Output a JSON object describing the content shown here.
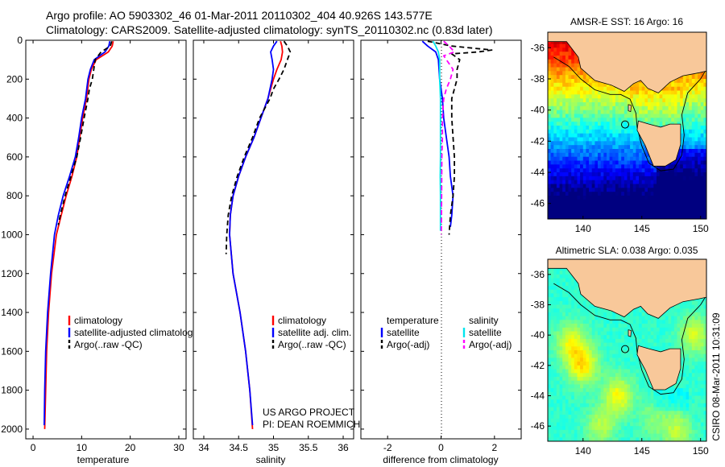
{
  "header": {
    "line1": "Argo profile: AO 5903302_46 01-Mar-2011 20110302_404 40.926S 143.577E",
    "line2": "Climatology: CARS2009. Satellite-adjusted climatology: synTS_20110302.nc (0.83d later)"
  },
  "colors": {
    "climatology": "#ff0000",
    "satellite": "#0000ff",
    "argo": "#000000",
    "sal_satellite": "#00e5ee",
    "sal_argo": "#ff00ff",
    "land": "#f8c89a",
    "coast": "#000000"
  },
  "chart_data": [
    {
      "type": "line",
      "id": "temperature",
      "xlabel": "temperature",
      "ylabel": "",
      "xlim": [
        -1.5,
        31.5
      ],
      "ylim": [
        2050,
        0
      ],
      "xticks": [
        0,
        10,
        20,
        30
      ],
      "xtick_labels": [
        "0",
        "10",
        "20",
        "30"
      ],
      "yticks": [
        0,
        200,
        400,
        600,
        800,
        1000,
        1200,
        1400,
        1600,
        1800,
        2000
      ],
      "ytick_labels": [
        "0",
        "200",
        "400",
        "600",
        "800",
        "1000",
        "1200",
        "1400",
        "1600",
        "1800",
        "2000"
      ],
      "legend": [
        "climatology",
        "satellite-adjusted climatology",
        "Argo(..raw -QC)"
      ],
      "legend_position": "lower-right",
      "series": [
        {
          "name": "climatology",
          "style": "solid",
          "depth": [
            5,
            30,
            60,
            100,
            150,
            200,
            300,
            400,
            500,
            600,
            700,
            800,
            900,
            1000,
            1200,
            1400,
            1600,
            1800,
            2000
          ],
          "values": [
            16.5,
            16.3,
            15.5,
            13.0,
            12.0,
            11.5,
            11.0,
            10.2,
            9.6,
            9.0,
            8.0,
            6.8,
            5.8,
            4.8,
            3.8,
            3.2,
            2.8,
            2.6,
            2.4
          ]
        },
        {
          "name": "satellite-adjusted climatology",
          "style": "solid",
          "depth": [
            5,
            30,
            60,
            100,
            150,
            200,
            300,
            400,
            500,
            600,
            700,
            800,
            900,
            1000,
            1200,
            1400,
            1600,
            1800,
            1980
          ],
          "values": [
            15.8,
            15.6,
            14.8,
            12.6,
            11.8,
            11.3,
            10.8,
            10.0,
            9.4,
            8.7,
            7.5,
            6.2,
            5.2,
            4.4,
            3.6,
            3.0,
            2.6,
            2.4,
            2.3
          ]
        },
        {
          "name": "Argo(..raw -QC)",
          "style": "dashed",
          "depth": [
            5,
            30,
            60,
            100,
            150,
            200,
            250,
            300,
            400,
            500,
            600,
            700,
            800,
            900,
            950
          ],
          "values": [
            16.2,
            15.9,
            14.0,
            12.8,
            12.5,
            12.2,
            11.6,
            11.3,
            10.5,
            9.8,
            9.0,
            7.8,
            6.6,
            5.6,
            5.2
          ]
        }
      ]
    },
    {
      "type": "line",
      "id": "salinity",
      "xlabel": "salinity",
      "ylabel": "",
      "xlim": [
        33.85,
        36.15
      ],
      "ylim": [
        2050,
        0
      ],
      "xticks": [
        34,
        34.5,
        35,
        35.5,
        36
      ],
      "xtick_labels": [
        "34",
        "34.5",
        "35",
        "35.5",
        "36"
      ],
      "legend": [
        "climatology",
        "satellite adj. clim.",
        "Argo(..raw -QC)"
      ],
      "legend_position": "lower-right",
      "annotations": [
        "US ARGO PROJECT",
        "PI: DEAN ROEMMICH"
      ],
      "series": [
        {
          "name": "climatology",
          "style": "solid",
          "depth": [
            5,
            30,
            60,
            100,
            150,
            200,
            300,
            400,
            500,
            600,
            700,
            800,
            900,
            1000,
            1200,
            1400,
            1600,
            1800,
            2000
          ],
          "values": [
            35.1,
            35.12,
            35.13,
            35.11,
            35.05,
            35.0,
            34.92,
            34.82,
            34.72,
            34.6,
            34.5,
            34.42,
            34.38,
            34.37,
            34.42,
            34.52,
            34.6,
            34.66,
            34.7
          ]
        },
        {
          "name": "satellite adj. clim.",
          "style": "solid",
          "depth": [
            5,
            30,
            60,
            100,
            150,
            200,
            300,
            400,
            500,
            600,
            700,
            800,
            900,
            1000,
            1200,
            1400,
            1600,
            1800,
            1980
          ],
          "values": [
            35.05,
            35.0,
            34.96,
            34.98,
            35.0,
            34.98,
            34.92,
            34.82,
            34.72,
            34.6,
            34.5,
            34.42,
            34.38,
            34.37,
            34.42,
            34.52,
            34.6,
            34.66,
            34.7
          ]
        },
        {
          "name": "Argo(..raw -QC)",
          "style": "dashed",
          "depth": [
            5,
            30,
            60,
            100,
            150,
            200,
            250,
            300,
            400,
            500,
            600,
            700,
            800,
            900,
            1000,
            1100
          ],
          "values": [
            35.15,
            35.2,
            35.24,
            35.2,
            35.15,
            35.08,
            35.0,
            34.95,
            34.8,
            34.7,
            34.58,
            34.48,
            34.4,
            34.35,
            34.33,
            34.32
          ]
        }
      ]
    },
    {
      "type": "line",
      "id": "difference",
      "xlabel": "difference from climatology",
      "ylabel": "",
      "xlim": [
        -3.0,
        3.0
      ],
      "ylim": [
        2050,
        0
      ],
      "xticks": [
        -2,
        0,
        2
      ],
      "xtick_labels": [
        "-2",
        "0",
        "2"
      ],
      "zero_line": 0,
      "legend_headers": [
        "temperature",
        "salinity"
      ],
      "legend": [
        "satellite",
        "Argo(-adj)",
        "satellite",
        "Argo(-adj)"
      ],
      "legend_position": "lower-right",
      "series": [
        {
          "name": "temperature satellite",
          "group": "temperature",
          "style": "solid",
          "depth": [
            5,
            30,
            60,
            100,
            200,
            300,
            400,
            500,
            600,
            700,
            800,
            900,
            960
          ],
          "values": [
            -0.7,
            -0.5,
            -0.2,
            -0.1,
            -0.05,
            0.05,
            0.1,
            0.2,
            0.3,
            0.35,
            0.45,
            0.4,
            0.35
          ]
        },
        {
          "name": "temperature Argo(-adj)",
          "group": "temperature",
          "style": "dashed",
          "depth": [
            5,
            30,
            50,
            60,
            70,
            100,
            150,
            200,
            300,
            400,
            500,
            600,
            700,
            800,
            900,
            1000
          ],
          "values": [
            -0.5,
            0.4,
            1.9,
            1.4,
            0.4,
            0.7,
            0.6,
            0.6,
            0.4,
            0.4,
            0.45,
            0.5,
            0.5,
            0.45,
            0.35,
            0.3
          ]
        },
        {
          "name": "salinity satellite",
          "group": "salinity",
          "style": "solid",
          "depth": [
            5,
            30,
            60,
            100,
            200,
            300,
            400,
            500,
            600,
            700,
            800,
            900,
            980
          ],
          "values": [
            -0.3,
            -0.2,
            -0.1,
            -0.05,
            -0.05,
            -0.02,
            -0.02,
            -0.02,
            -0.02,
            -0.03,
            -0.02,
            -0.02,
            -0.02
          ]
        },
        {
          "name": "salinity Argo(-adj)",
          "group": "salinity",
          "style": "dashed",
          "depth": [
            5,
            30,
            60,
            80,
            100,
            150,
            200,
            250,
            300,
            400,
            500,
            600,
            800,
            1000
          ],
          "values": [
            0.1,
            0.3,
            0.5,
            0.1,
            0.2,
            0.45,
            0.35,
            0.2,
            0.1,
            0.05,
            0.05,
            0.03,
            0.02,
            0.01
          ]
        }
      ]
    },
    {
      "type": "heatmap",
      "id": "sst-map",
      "title": "AMSR-E SST: 16 Argo: 16",
      "xlim": [
        137,
        150.5
      ],
      "ylim": [
        -47,
        -35
      ],
      "xticks": [
        140,
        145,
        150
      ],
      "xtick_labels": [
        "140",
        "145",
        "150"
      ],
      "yticks": [
        -36,
        -38,
        -40,
        -42,
        -44,
        -46
      ],
      "ytick_labels": [
        "-36",
        "-38",
        "-40",
        "-42",
        "-44",
        "-46"
      ],
      "profile_location": [
        143.577,
        -40.926
      ],
      "colormap": "jet"
    },
    {
      "type": "heatmap",
      "id": "sla-map",
      "title": "Altimetric SLA: 0.038 Argo: 0.035",
      "xlim": [
        137,
        150.5
      ],
      "ylim": [
        -47,
        -35
      ],
      "xticks": [
        140,
        145,
        150
      ],
      "xtick_labels": [
        "140",
        "145",
        "150"
      ],
      "yticks": [
        -36,
        -38,
        -40,
        -42,
        -44,
        -46
      ],
      "ytick_labels": [
        "-36",
        "-38",
        "-40",
        "-42",
        "-44",
        "-46"
      ],
      "profile_location": [
        143.577,
        -40.926
      ],
      "colormap": "jet"
    }
  ],
  "credit": "CSIRO 08-Mar-2011 10:31:09"
}
